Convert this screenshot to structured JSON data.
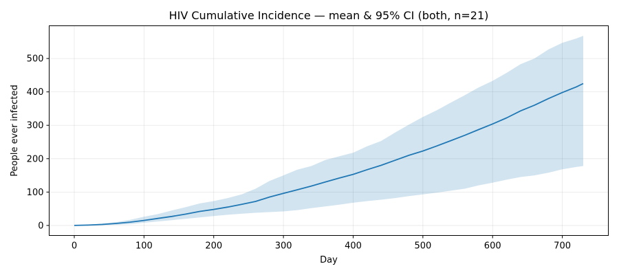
{
  "chart_data": {
    "type": "area",
    "title": "HIV Cumulative Incidence — mean & 95% CI (both, n=21)",
    "xlabel": "Day",
    "ylabel": "People ever infected",
    "xlim": [
      -36,
      766
    ],
    "ylim": [
      -30,
      598
    ],
    "xticks": [
      0,
      100,
      200,
      300,
      400,
      500,
      600,
      700
    ],
    "yticks": [
      0,
      100,
      200,
      300,
      400,
      500
    ],
    "grid": true,
    "colors": {
      "line": "#1f77b4",
      "band": "#1f77b4"
    },
    "series": [
      {
        "kind": "mean",
        "x": [
          0,
          20,
          40,
          60,
          80,
          100,
          120,
          140,
          160,
          180,
          200,
          220,
          240,
          260,
          280,
          300,
          320,
          340,
          360,
          380,
          400,
          420,
          440,
          460,
          480,
          500,
          520,
          540,
          560,
          580,
          600,
          620,
          640,
          660,
          680,
          700,
          720,
          730
        ],
        "y": [
          0,
          1,
          3,
          6,
          10,
          15,
          21,
          27,
          34,
          42,
          48,
          55,
          63,
          72,
          85,
          96,
          107,
          118,
          130,
          142,
          153,
          167,
          180,
          195,
          210,
          223,
          238,
          254,
          270,
          287,
          304,
          322,
          343,
          360,
          380,
          398,
          415,
          425
        ]
      },
      {
        "kind": "ci95",
        "x": [
          0,
          20,
          40,
          60,
          80,
          100,
          120,
          140,
          160,
          180,
          200,
          220,
          240,
          260,
          280,
          300,
          320,
          340,
          360,
          380,
          400,
          420,
          440,
          460,
          480,
          500,
          520,
          540,
          560,
          580,
          600,
          620,
          640,
          660,
          680,
          700,
          720,
          730
        ],
        "lower": [
          0,
          0,
          1,
          2,
          4,
          8,
          12,
          16,
          20,
          24,
          28,
          32,
          35,
          38,
          40,
          42,
          46,
          52,
          57,
          62,
          68,
          73,
          77,
          82,
          88,
          93,
          98,
          104,
          110,
          120,
          128,
          137,
          145,
          150,
          158,
          168,
          175,
          178
        ],
        "upper": [
          1,
          2,
          6,
          10,
          17,
          26,
          34,
          45,
          55,
          66,
          73,
          82,
          93,
          110,
          133,
          150,
          167,
          178,
          196,
          207,
          218,
          237,
          253,
          278,
          302,
          325,
          345,
          368,
          390,
          413,
          433,
          457,
          483,
          500,
          527,
          547,
          560,
          568
        ]
      }
    ]
  }
}
